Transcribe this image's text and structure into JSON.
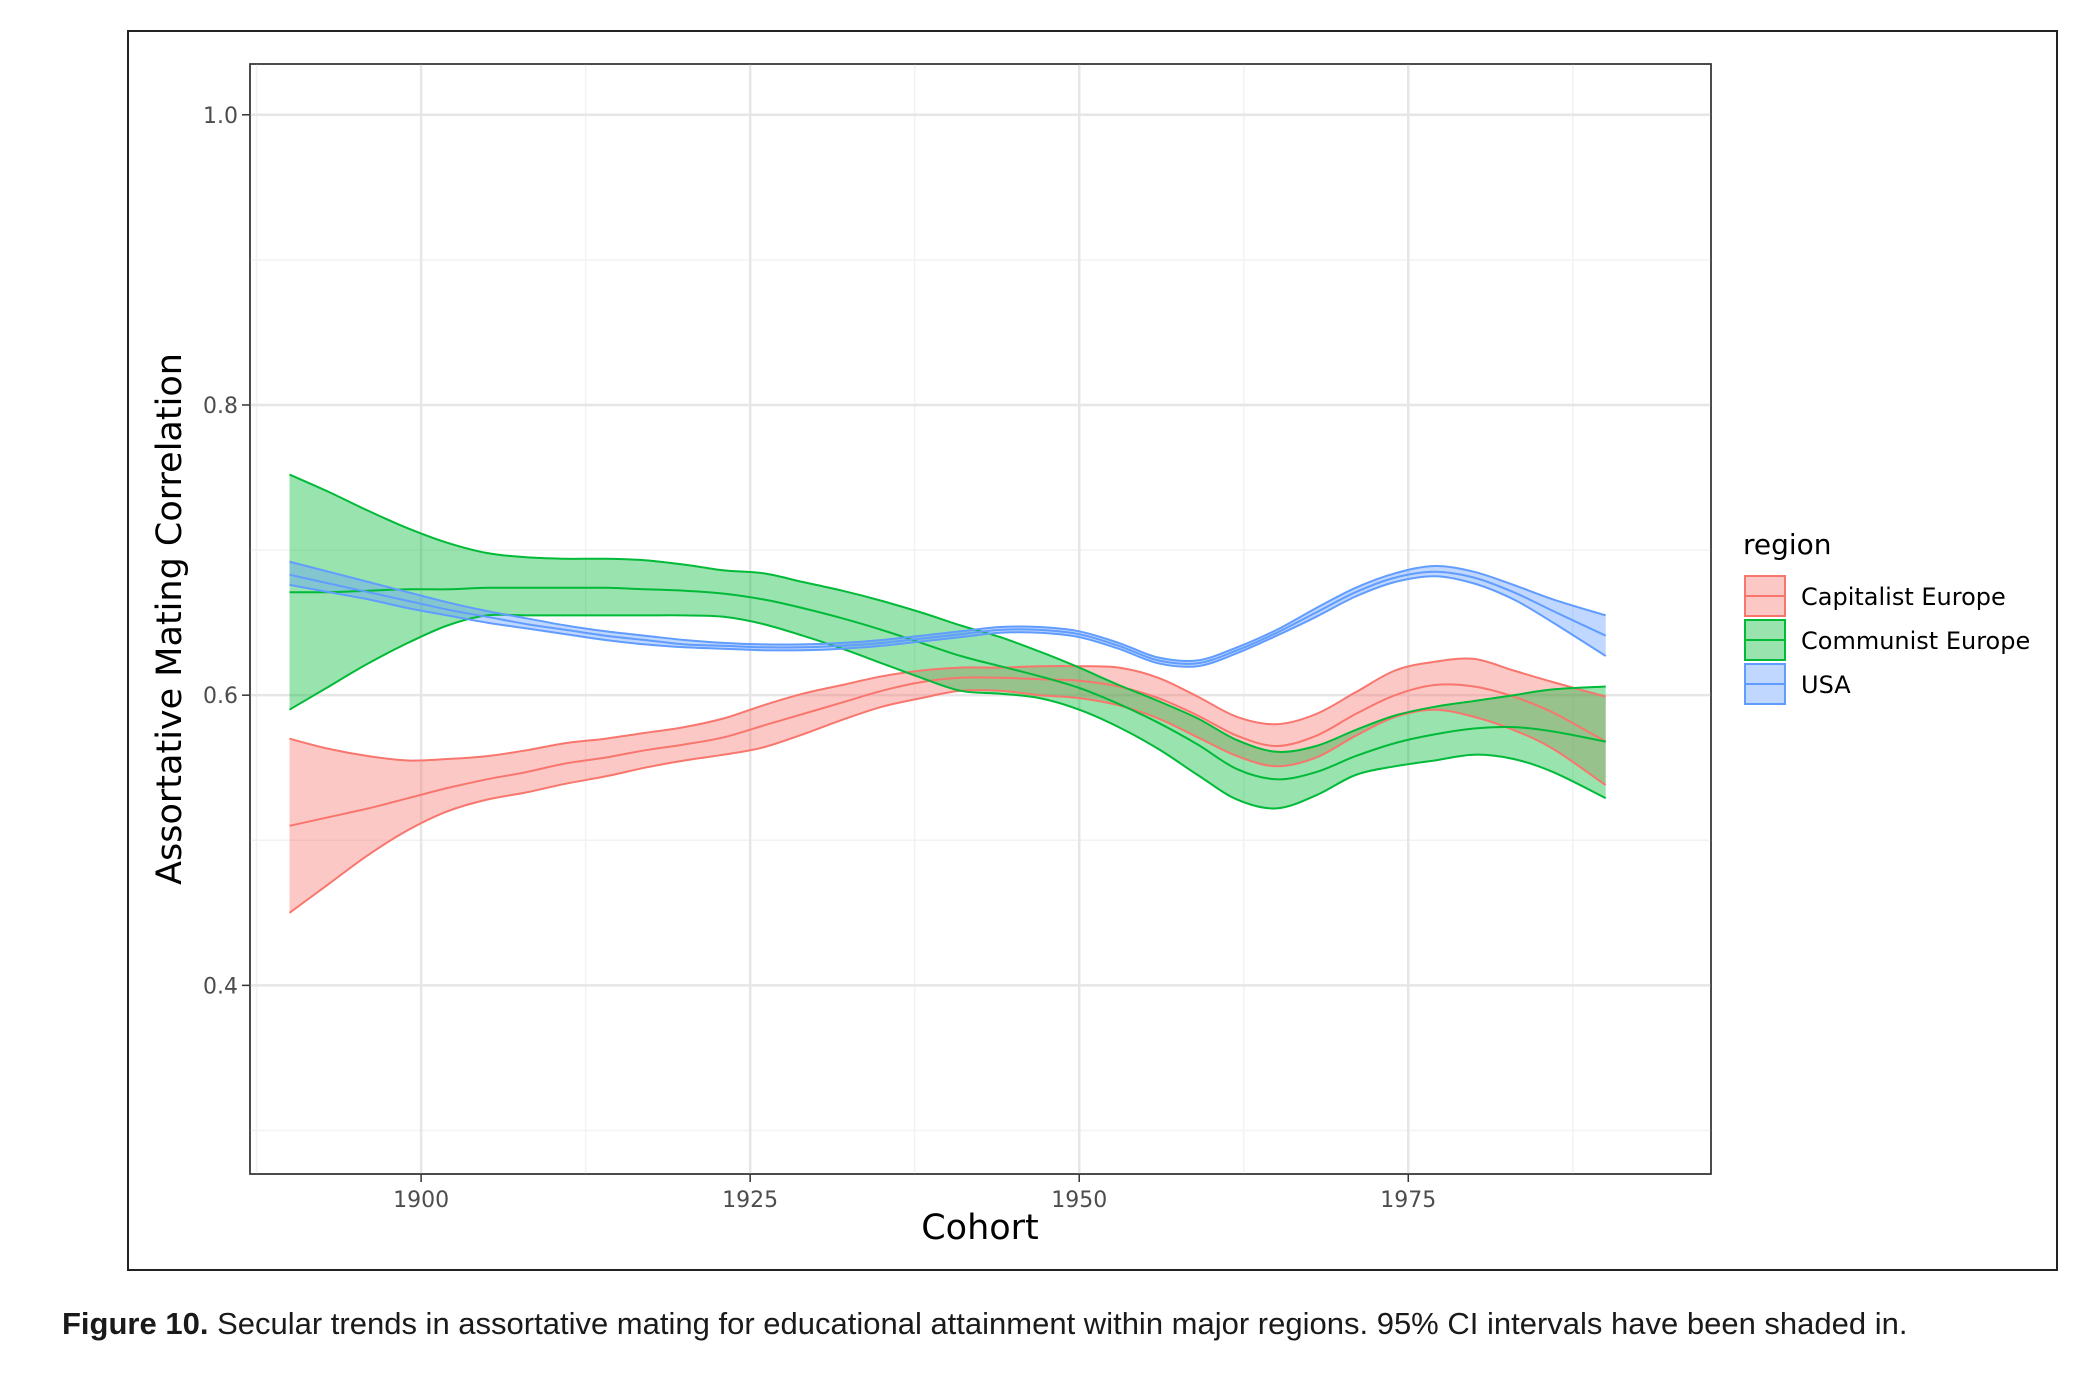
{
  "chart_data": {
    "type": "line",
    "xlabel": "Cohort",
    "ylabel": "Assortative Mating Correlation",
    "xlim": [
      1887,
      1998
    ],
    "ylim": [
      0.27,
      1.035
    ],
    "xticks": [
      1900,
      1925,
      1950,
      1975
    ],
    "yticks": [
      0.4,
      0.6,
      0.8,
      1.0
    ],
    "ytick_labels": [
      "0.4",
      "0.6",
      "0.8",
      "1.0"
    ],
    "grid": true,
    "legend": {
      "title": "region",
      "position": "right"
    },
    "x": [
      1890,
      1893,
      1896,
      1899,
      1902,
      1905,
      1908,
      1911,
      1914,
      1917,
      1920,
      1923,
      1926,
      1929,
      1932,
      1935,
      1938,
      1941,
      1944,
      1947,
      1950,
      1953,
      1956,
      1959,
      1962,
      1965,
      1968,
      1971,
      1974,
      1977,
      1980,
      1983,
      1986,
      1990
    ],
    "series": [
      {
        "name": "Capitalist Europe",
        "color": "#F8766D",
        "fill": "#F8766D",
        "values": [
          0.51,
          0.516,
          0.522,
          0.529,
          0.536,
          0.542,
          0.547,
          0.553,
          0.557,
          0.562,
          0.566,
          0.571,
          0.579,
          0.587,
          0.595,
          0.603,
          0.609,
          0.612,
          0.612,
          0.611,
          0.61,
          0.606,
          0.598,
          0.586,
          0.572,
          0.565,
          0.572,
          0.587,
          0.6,
          0.607,
          0.606,
          0.599,
          0.588,
          0.568
        ],
        "lower": [
          0.45,
          0.47,
          0.49,
          0.507,
          0.52,
          0.528,
          0.533,
          0.539,
          0.544,
          0.55,
          0.555,
          0.559,
          0.564,
          0.573,
          0.583,
          0.592,
          0.598,
          0.603,
          0.603,
          0.6,
          0.598,
          0.593,
          0.584,
          0.571,
          0.558,
          0.551,
          0.557,
          0.572,
          0.585,
          0.59,
          0.585,
          0.576,
          0.563,
          0.538
        ],
        "upper": [
          0.57,
          0.563,
          0.558,
          0.555,
          0.556,
          0.558,
          0.562,
          0.567,
          0.57,
          0.574,
          0.578,
          0.584,
          0.593,
          0.601,
          0.607,
          0.613,
          0.617,
          0.619,
          0.619,
          0.62,
          0.62,
          0.619,
          0.612,
          0.599,
          0.585,
          0.58,
          0.587,
          0.602,
          0.617,
          0.623,
          0.625,
          0.617,
          0.609,
          0.599
        ]
      },
      {
        "name": "Communist Europe",
        "color": "#00BA38",
        "fill": "#00BA38",
        "values": [
          0.671,
          0.671,
          0.672,
          0.673,
          0.673,
          0.674,
          0.674,
          0.674,
          0.674,
          0.673,
          0.672,
          0.67,
          0.666,
          0.66,
          0.653,
          0.645,
          0.636,
          0.627,
          0.62,
          0.613,
          0.605,
          0.594,
          0.581,
          0.566,
          0.549,
          0.542,
          0.547,
          0.558,
          0.567,
          0.573,
          0.577,
          0.578,
          0.575,
          0.568
        ],
        "lower": [
          0.59,
          0.606,
          0.622,
          0.636,
          0.648,
          0.655,
          0.655,
          0.655,
          0.655,
          0.655,
          0.655,
          0.654,
          0.649,
          0.641,
          0.632,
          0.622,
          0.612,
          0.603,
          0.601,
          0.598,
          0.59,
          0.578,
          0.563,
          0.545,
          0.528,
          0.522,
          0.531,
          0.545,
          0.551,
          0.555,
          0.559,
          0.556,
          0.547,
          0.529
        ],
        "upper": [
          0.752,
          0.74,
          0.727,
          0.715,
          0.705,
          0.698,
          0.695,
          0.694,
          0.694,
          0.693,
          0.69,
          0.686,
          0.684,
          0.678,
          0.672,
          0.665,
          0.657,
          0.648,
          0.64,
          0.63,
          0.619,
          0.607,
          0.596,
          0.584,
          0.569,
          0.561,
          0.565,
          0.576,
          0.586,
          0.592,
          0.596,
          0.6,
          0.604,
          0.606
        ]
      },
      {
        "name": "USA",
        "color": "#619CFF",
        "fill": "#619CFF",
        "values": [
          0.683,
          0.677,
          0.671,
          0.665,
          0.659,
          0.654,
          0.649,
          0.645,
          0.641,
          0.638,
          0.635,
          0.634,
          0.633,
          0.633,
          0.634,
          0.636,
          0.639,
          0.642,
          0.645,
          0.645,
          0.642,
          0.634,
          0.624,
          0.622,
          0.631,
          0.643,
          0.657,
          0.671,
          0.681,
          0.685,
          0.681,
          0.671,
          0.658,
          0.641
        ],
        "lower": [
          0.676,
          0.671,
          0.666,
          0.66,
          0.655,
          0.65,
          0.646,
          0.642,
          0.638,
          0.635,
          0.633,
          0.632,
          0.631,
          0.631,
          0.632,
          0.634,
          0.637,
          0.64,
          0.643,
          0.643,
          0.64,
          0.632,
          0.622,
          0.62,
          0.629,
          0.641,
          0.654,
          0.668,
          0.678,
          0.682,
          0.677,
          0.666,
          0.65,
          0.627
        ],
        "upper": [
          0.692,
          0.685,
          0.678,
          0.671,
          0.664,
          0.658,
          0.653,
          0.648,
          0.644,
          0.641,
          0.638,
          0.636,
          0.635,
          0.635,
          0.636,
          0.638,
          0.641,
          0.644,
          0.647,
          0.647,
          0.644,
          0.636,
          0.626,
          0.624,
          0.633,
          0.645,
          0.66,
          0.674,
          0.684,
          0.689,
          0.685,
          0.676,
          0.666,
          0.655
        ]
      }
    ]
  },
  "caption": {
    "label": "Figure 10.",
    "text": "Secular trends in assortative mating for educational attainment within major regions. 95% CI intervals have been shaded in."
  }
}
